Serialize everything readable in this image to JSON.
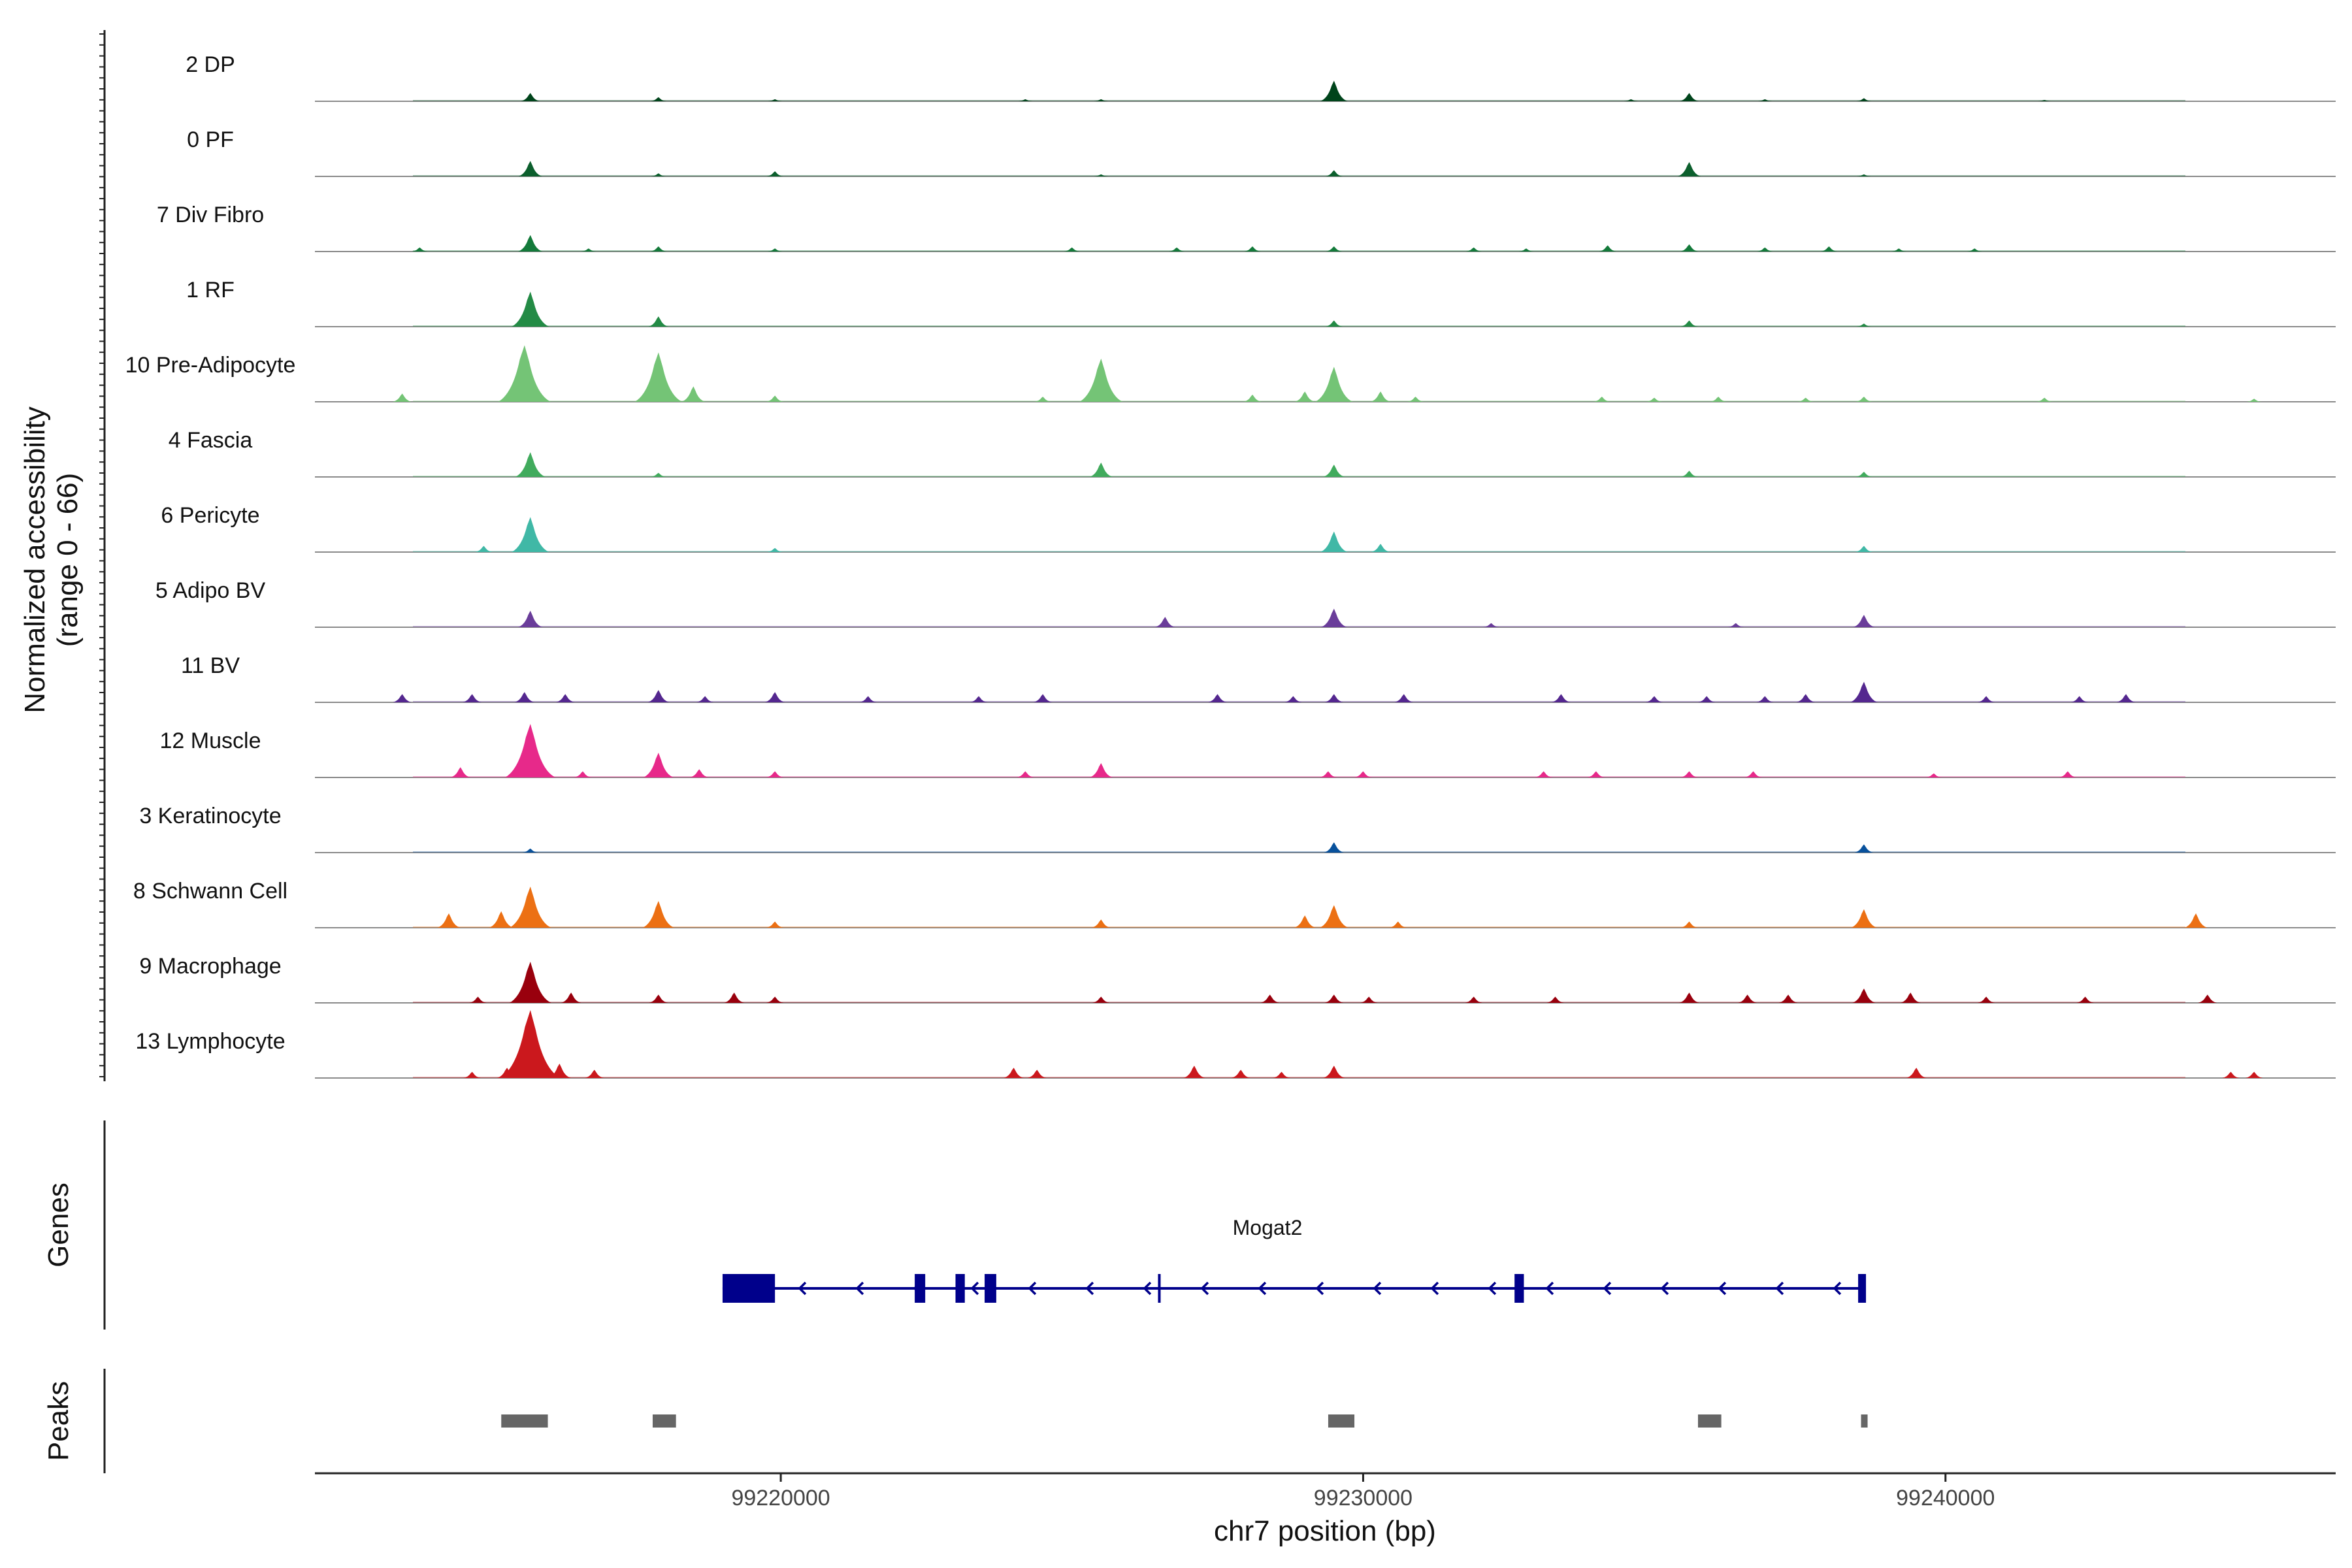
{
  "chart_data": {
    "type": "area",
    "xlabel": "chr7 position (bp)",
    "ylabel": "Normalized accessibility",
    "ylabel_range": "(range 0 - 66)",
    "y_range": [
      0,
      66
    ],
    "x_range": [
      99212000,
      99246700
    ],
    "x_ticks": [
      99220000,
      99230000,
      99240000
    ],
    "x_tick_labels": [
      "99220000",
      "99230000",
      "99240000"
    ],
    "tracks": [
      {
        "name": "2 DP",
        "color": "#00441b",
        "peaks": [
          [
            99215700,
            8
          ],
          [
            99217900,
            4
          ],
          [
            99219900,
            2
          ],
          [
            99224200,
            2
          ],
          [
            99225500,
            2
          ],
          [
            99229500,
            20
          ],
          [
            99234600,
            2
          ],
          [
            99235600,
            8
          ],
          [
            99236900,
            2
          ],
          [
            99238600,
            3
          ],
          [
            99241700,
            1
          ]
        ]
      },
      {
        "name": "0 PF",
        "color": "#0c5f2d",
        "peaks": [
          [
            99215700,
            15
          ],
          [
            99217900,
            3
          ],
          [
            99219900,
            5
          ],
          [
            99225500,
            2
          ],
          [
            99229500,
            6
          ],
          [
            99235600,
            14
          ],
          [
            99238600,
            2
          ]
        ]
      },
      {
        "name": "7 Div Fibro",
        "color": "#137a3a",
        "peaks": [
          [
            99213800,
            4
          ],
          [
            99215700,
            16
          ],
          [
            99216700,
            3
          ],
          [
            99217900,
            5
          ],
          [
            99219900,
            3
          ],
          [
            99225000,
            4
          ],
          [
            99226800,
            4
          ],
          [
            99228100,
            5
          ],
          [
            99229500,
            5
          ],
          [
            99231900,
            4
          ],
          [
            99232800,
            3
          ],
          [
            99234200,
            6
          ],
          [
            99235600,
            7
          ],
          [
            99236900,
            4
          ],
          [
            99238000,
            5
          ],
          [
            99239200,
            3
          ],
          [
            99240500,
            3
          ]
        ]
      },
      {
        "name": "1 RF",
        "color": "#238b45",
        "peaks": [
          [
            99215700,
            34
          ],
          [
            99217900,
            10
          ],
          [
            99229500,
            6
          ],
          [
            99235600,
            6
          ],
          [
            99238600,
            3
          ]
        ]
      },
      {
        "name": "10 Pre-Adipocyte",
        "color": "#74c476",
        "peaks": [
          [
            99213500,
            8
          ],
          [
            99215600,
            55
          ],
          [
            99217900,
            48
          ],
          [
            99218500,
            15
          ],
          [
            99219900,
            6
          ],
          [
            99224500,
            5
          ],
          [
            99225500,
            42
          ],
          [
            99228100,
            7
          ],
          [
            99229000,
            10
          ],
          [
            99229500,
            34
          ],
          [
            99230300,
            10
          ],
          [
            99230900,
            5
          ],
          [
            99234100,
            5
          ],
          [
            99235000,
            4
          ],
          [
            99236100,
            5
          ],
          [
            99237600,
            4
          ],
          [
            99238600,
            5
          ],
          [
            99241700,
            4
          ],
          [
            99245300,
            3
          ]
        ]
      },
      {
        "name": "4 Fascia",
        "color": "#41ab5d",
        "peaks": [
          [
            99215700,
            24
          ],
          [
            99217900,
            4
          ],
          [
            99225500,
            14
          ],
          [
            99229500,
            12
          ],
          [
            99235600,
            6
          ],
          [
            99238600,
            5
          ]
        ]
      },
      {
        "name": "6 Pericyte",
        "color": "#40b8a6",
        "peaks": [
          [
            99214900,
            6
          ],
          [
            99215700,
            34
          ],
          [
            99219900,
            4
          ],
          [
            99229500,
            20
          ],
          [
            99230300,
            8
          ],
          [
            99238600,
            6
          ]
        ]
      },
      {
        "name": "5 Adipo BV",
        "color": "#6a3d9a",
        "peaks": [
          [
            99215700,
            16
          ],
          [
            99226600,
            10
          ],
          [
            99229500,
            18
          ],
          [
            99232200,
            4
          ],
          [
            99236400,
            4
          ],
          [
            99238600,
            12
          ]
        ]
      },
      {
        "name": "11 BV",
        "color": "#54278f",
        "peaks": [
          [
            99213500,
            8
          ],
          [
            99214700,
            8
          ],
          [
            99215600,
            10
          ],
          [
            99216300,
            8
          ],
          [
            99217900,
            12
          ],
          [
            99218700,
            6
          ],
          [
            99219900,
            10
          ],
          [
            99221500,
            6
          ],
          [
            99223400,
            6
          ],
          [
            99224500,
            8
          ],
          [
            99227500,
            8
          ],
          [
            99228800,
            6
          ],
          [
            99229500,
            8
          ],
          [
            99230700,
            8
          ],
          [
            99233400,
            8
          ],
          [
            99235000,
            6
          ],
          [
            99235900,
            6
          ],
          [
            99236900,
            6
          ],
          [
            99237600,
            8
          ],
          [
            99238600,
            20
          ],
          [
            99240700,
            6
          ],
          [
            99242300,
            6
          ],
          [
            99243100,
            8
          ]
        ]
      },
      {
        "name": "12 Muscle",
        "color": "#e7298a",
        "peaks": [
          [
            99214500,
            10
          ],
          [
            99215700,
            52
          ],
          [
            99216600,
            6
          ],
          [
            99217900,
            24
          ],
          [
            99218600,
            8
          ],
          [
            99219900,
            6
          ],
          [
            99224200,
            6
          ],
          [
            99225500,
            14
          ],
          [
            99229400,
            6
          ],
          [
            99230000,
            6
          ],
          [
            99233100,
            6
          ],
          [
            99234000,
            6
          ],
          [
            99235600,
            6
          ],
          [
            99236700,
            6
          ],
          [
            99239800,
            4
          ],
          [
            99242100,
            6
          ]
        ]
      },
      {
        "name": "3 Keratinocyte",
        "color": "#08519c",
        "peaks": [
          [
            99215700,
            4
          ],
          [
            99229500,
            10
          ],
          [
            99238600,
            8
          ]
        ]
      },
      {
        "name": "8 Schwann Cell",
        "color": "#ec7014",
        "peaks": [
          [
            99214300,
            14
          ],
          [
            99215200,
            16
          ],
          [
            99215700,
            40
          ],
          [
            99217900,
            26
          ],
          [
            99219900,
            6
          ],
          [
            99225500,
            8
          ],
          [
            99229000,
            12
          ],
          [
            99229500,
            22
          ],
          [
            99230600,
            6
          ],
          [
            99235600,
            6
          ],
          [
            99238600,
            18
          ],
          [
            99244300,
            14
          ]
        ]
      },
      {
        "name": "9 Macrophage",
        "color": "#99000d",
        "peaks": [
          [
            99214800,
            6
          ],
          [
            99215700,
            40
          ],
          [
            99216400,
            10
          ],
          [
            99217900,
            8
          ],
          [
            99219200,
            10
          ],
          [
            99219900,
            6
          ],
          [
            99225500,
            6
          ],
          [
            99228400,
            8
          ],
          [
            99229500,
            8
          ],
          [
            99230100,
            6
          ],
          [
            99231900,
            6
          ],
          [
            99233300,
            6
          ],
          [
            99235600,
            10
          ],
          [
            99236600,
            8
          ],
          [
            99237300,
            8
          ],
          [
            99238600,
            14
          ],
          [
            99239400,
            10
          ],
          [
            99240700,
            6
          ],
          [
            99242400,
            6
          ],
          [
            99244500,
            8
          ]
        ]
      },
      {
        "name": "13 Lymphocyte",
        "color": "#cb181d",
        "peaks": [
          [
            99214700,
            6
          ],
          [
            99215300,
            10
          ],
          [
            99215700,
            66
          ],
          [
            99216200,
            14
          ],
          [
            99216800,
            8
          ],
          [
            99224000,
            10
          ],
          [
            99224400,
            8
          ],
          [
            99227100,
            12
          ],
          [
            99227900,
            8
          ],
          [
            99228600,
            6
          ],
          [
            99229500,
            12
          ],
          [
            99239500,
            10
          ],
          [
            99244900,
            6
          ],
          [
            99245300,
            6
          ]
        ]
      }
    ],
    "genes_label": "Genes",
    "gene": {
      "name": "Mogat2",
      "strand": "-",
      "color": "#00008b",
      "start": 99219000,
      "end": 99238600,
      "exons": [
        [
          99219000,
          99219900
        ],
        [
          99222300,
          99222480
        ],
        [
          99223000,
          99223160
        ],
        [
          99223500,
          99223700
        ],
        [
          99232600,
          99232760
        ],
        [
          99238500,
          99238620
        ]
      ],
      "tick_marks": [
        99226500
      ]
    },
    "peaks_label": "Peaks",
    "peak_color": "#666666",
    "peak_regions": [
      [
        99215200,
        99216000
      ],
      [
        99217800,
        99218200
      ],
      [
        99229400,
        99229850
      ],
      [
        99235750,
        99236150
      ],
      [
        99238550,
        99238650
      ]
    ]
  }
}
